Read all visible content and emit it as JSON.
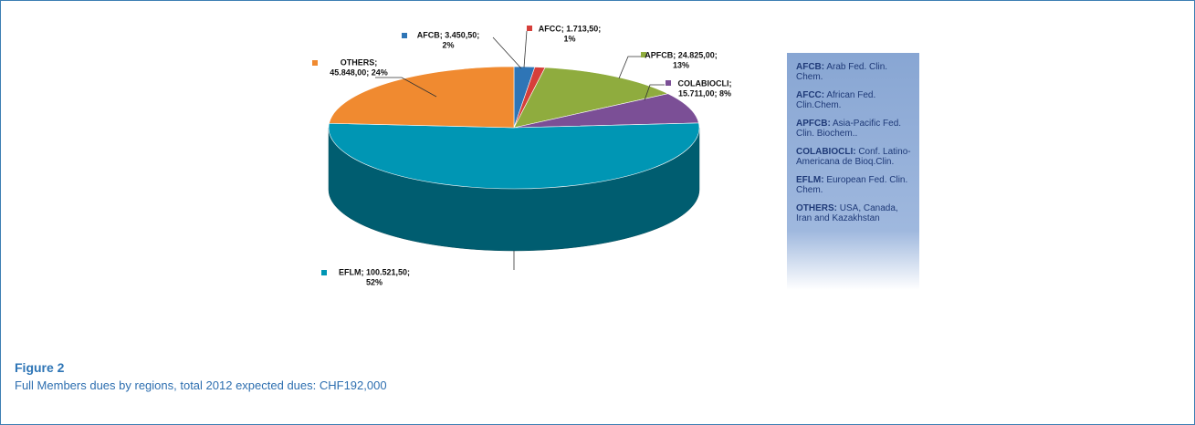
{
  "chart_data": {
    "type": "pie3d",
    "categories": [
      "AFCB",
      "AFCC",
      "APFCB",
      "COLABIOCLI",
      "EFLM",
      "OTHERS"
    ],
    "values": [
      3450.5,
      1713.5,
      24825,
      15711,
      100521.5,
      45848
    ],
    "value_labels": [
      [
        "AFCB; 3.450,50;",
        "2%"
      ],
      [
        "AFCC; 1.713,50;",
        "1%"
      ],
      [
        "APFCB; 24.825,00;",
        "13%"
      ],
      [
        "COLABIOCLI;",
        "15.711,00; 8%"
      ],
      [
        "EFLM; 100.521,50;",
        "52%"
      ],
      [
        "OTHERS;",
        "45.848,00; 24%"
      ]
    ],
    "colors": [
      "#2e75b6",
      "#d63f3a",
      "#8fac3e",
      "#7b4f96",
      "#0096b4",
      "#f08a30"
    ]
  },
  "notes": [
    {
      "term": "AFCB:",
      "text": "Arab Fed. Clin. Chem."
    },
    {
      "term": "AFCC:",
      "text": "African Fed. Clin.Chem."
    },
    {
      "term": "APFCB:",
      "text": "Asia-Pacific Fed. Clin. Biochem.."
    },
    {
      "term": "COLABIOCLI:",
      "text": "Conf. Latino-Americana de Bioq.Clin."
    },
    {
      "term": "EFLM:",
      "text": "European Fed. Clin. Chem."
    },
    {
      "term": "OTHERS:",
      "text": "USA, Canada, Iran and Kazakhstan"
    }
  ],
  "figure": {
    "label": "Figure 2",
    "caption": "Full Members dues by regions, total 2012 expected dues: CHF192,000"
  }
}
